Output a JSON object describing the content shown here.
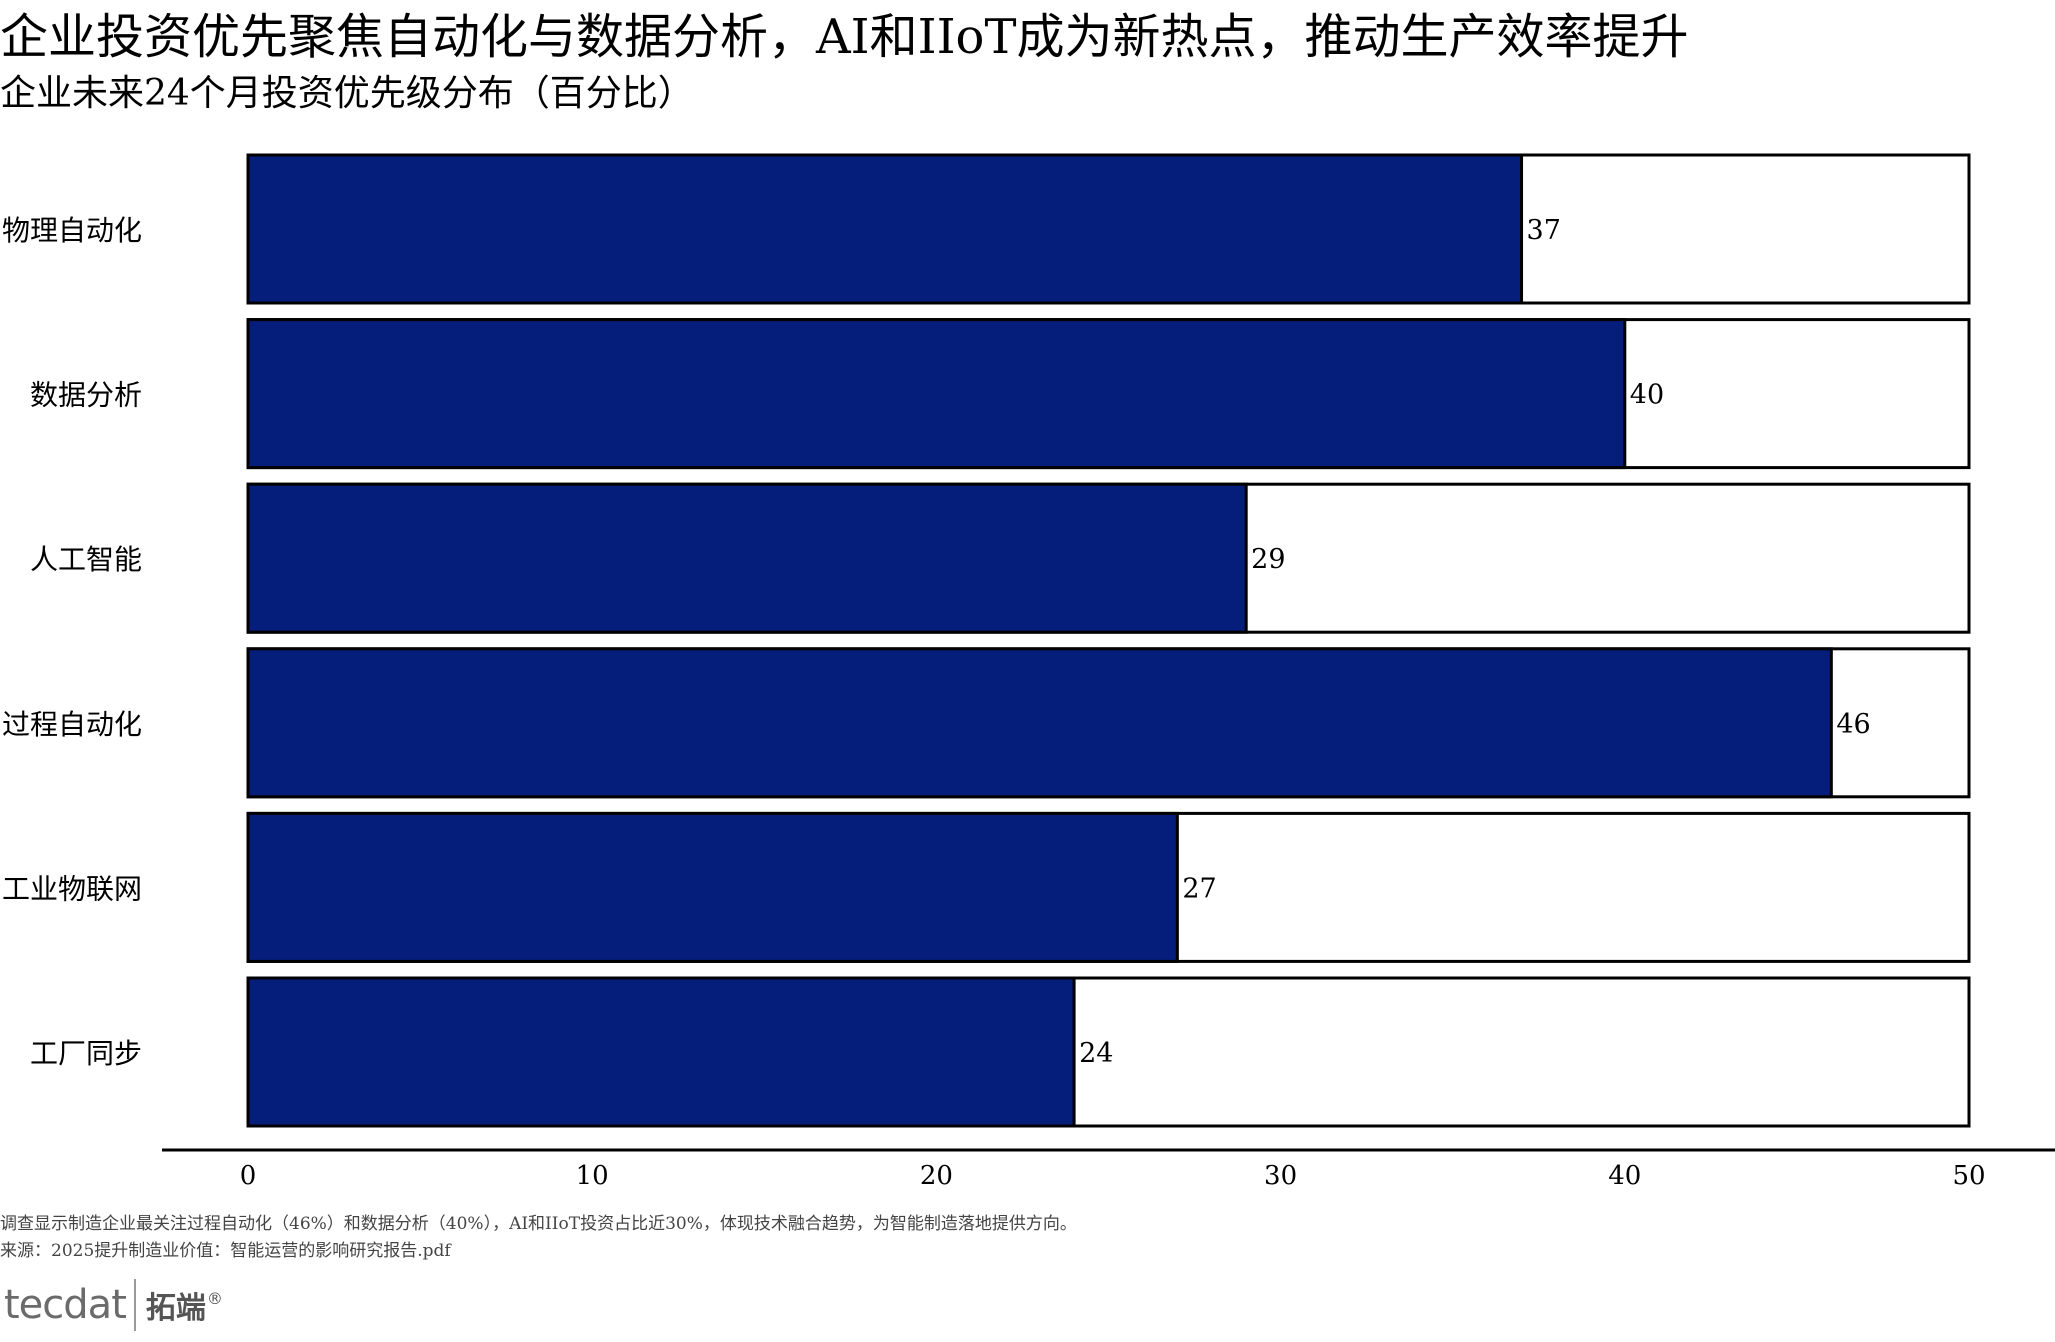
{
  "title": "企业投资优先聚焦自动化与数据分析，AI和IIoT成为新热点，推动生产效率提升",
  "subtitle": "企业未来24个月投资优先级分布（百分比）",
  "note": "调查显示制造企业最关注过程自动化（46%）和数据分析（40%），AI和IIoT投资占比近30%，体现技术融合趋势，为智能制造落地提供方向。",
  "source": "来源：2025提升制造业价值：智能运营的影响研究报告.pdf",
  "logo": {
    "mark": "tecdat",
    "cn": "拓端",
    "reg": "®"
  },
  "colors": {
    "bar": "#061E7B",
    "background_bar": "#FFFFFF",
    "outline": "#000000"
  },
  "chart_data": {
    "type": "bar",
    "orientation": "horizontal",
    "categories": [
      "物理自动化",
      "数据分析",
      "人工智能",
      "过程自动化",
      "工业物联网",
      "工厂同步"
    ],
    "values": [
      37,
      40,
      29,
      46,
      27,
      24
    ],
    "data_labels": [
      "37",
      "40",
      "29",
      "46",
      "27",
      "24"
    ],
    "xlim": [
      0,
      50
    ],
    "x_ticks": [
      0,
      10,
      20,
      30,
      40,
      50
    ],
    "x_tick_labels": [
      "0",
      "10",
      "20",
      "30",
      "40",
      "50"
    ],
    "background_bar_value": 50,
    "grid": false,
    "legend": "none"
  }
}
